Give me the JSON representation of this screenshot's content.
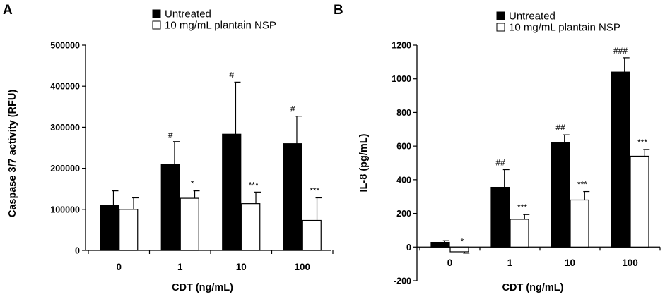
{
  "figure": {
    "panels": [
      "A",
      "B"
    ]
  },
  "chart_data": [
    {
      "type": "bar",
      "panel": "A",
      "categories": [
        "0",
        "1",
        "10",
        "100"
      ],
      "series": [
        {
          "name": "Untreated",
          "color": "#000000",
          "values": [
            110000,
            210000,
            283000,
            260000
          ],
          "errors": [
            35000,
            55000,
            127000,
            67000
          ],
          "annotations": [
            "",
            "#",
            "#",
            "#"
          ]
        },
        {
          "name": "10 mg/mL plantain NSP",
          "color": "#ffffff",
          "values": [
            100000,
            127000,
            114000,
            73000
          ],
          "errors": [
            28000,
            18000,
            28000,
            55000
          ],
          "annotations": [
            "",
            "*",
            "***",
            "***"
          ]
        }
      ],
      "xlabel": "CDT (ng/mL)",
      "ylabel": "Caspase 3/7 activity  (RFU)",
      "ylim": [
        0,
        500000
      ],
      "yticks": [
        "0",
        "100000",
        "200000",
        "300000",
        "400000",
        "500000"
      ],
      "ytick_values": [
        0,
        100000,
        200000,
        300000,
        400000,
        500000
      ],
      "legend": "top"
    },
    {
      "type": "bar",
      "panel": "B",
      "categories": [
        "0",
        "1",
        "10",
        "100"
      ],
      "series": [
        {
          "name": "Untreated",
          "color": "#000000",
          "values": [
            28,
            355,
            622,
            1040
          ],
          "errors": [
            10,
            105,
            45,
            85
          ],
          "annotations": [
            "",
            "##",
            "##",
            "###"
          ]
        },
        {
          "name": "10 mg/mL plantain NSP",
          "color": "#ffffff",
          "values": [
            -28,
            165,
            280,
            540
          ],
          "errors": [
            8,
            28,
            50,
            40
          ],
          "annotations": [
            "*",
            "***",
            "***",
            "***"
          ]
        }
      ],
      "xlabel": "CDT (ng/mL)",
      "ylabel": "IL-8 (pg/mL)",
      "ylim": [
        -200,
        1200
      ],
      "yticks": [
        "-200",
        "0",
        "200",
        "400",
        "600",
        "800",
        "1000",
        "1200"
      ],
      "ytick_values": [
        -200,
        0,
        200,
        400,
        600,
        800,
        1000,
        1200
      ],
      "legend": "top"
    }
  ]
}
